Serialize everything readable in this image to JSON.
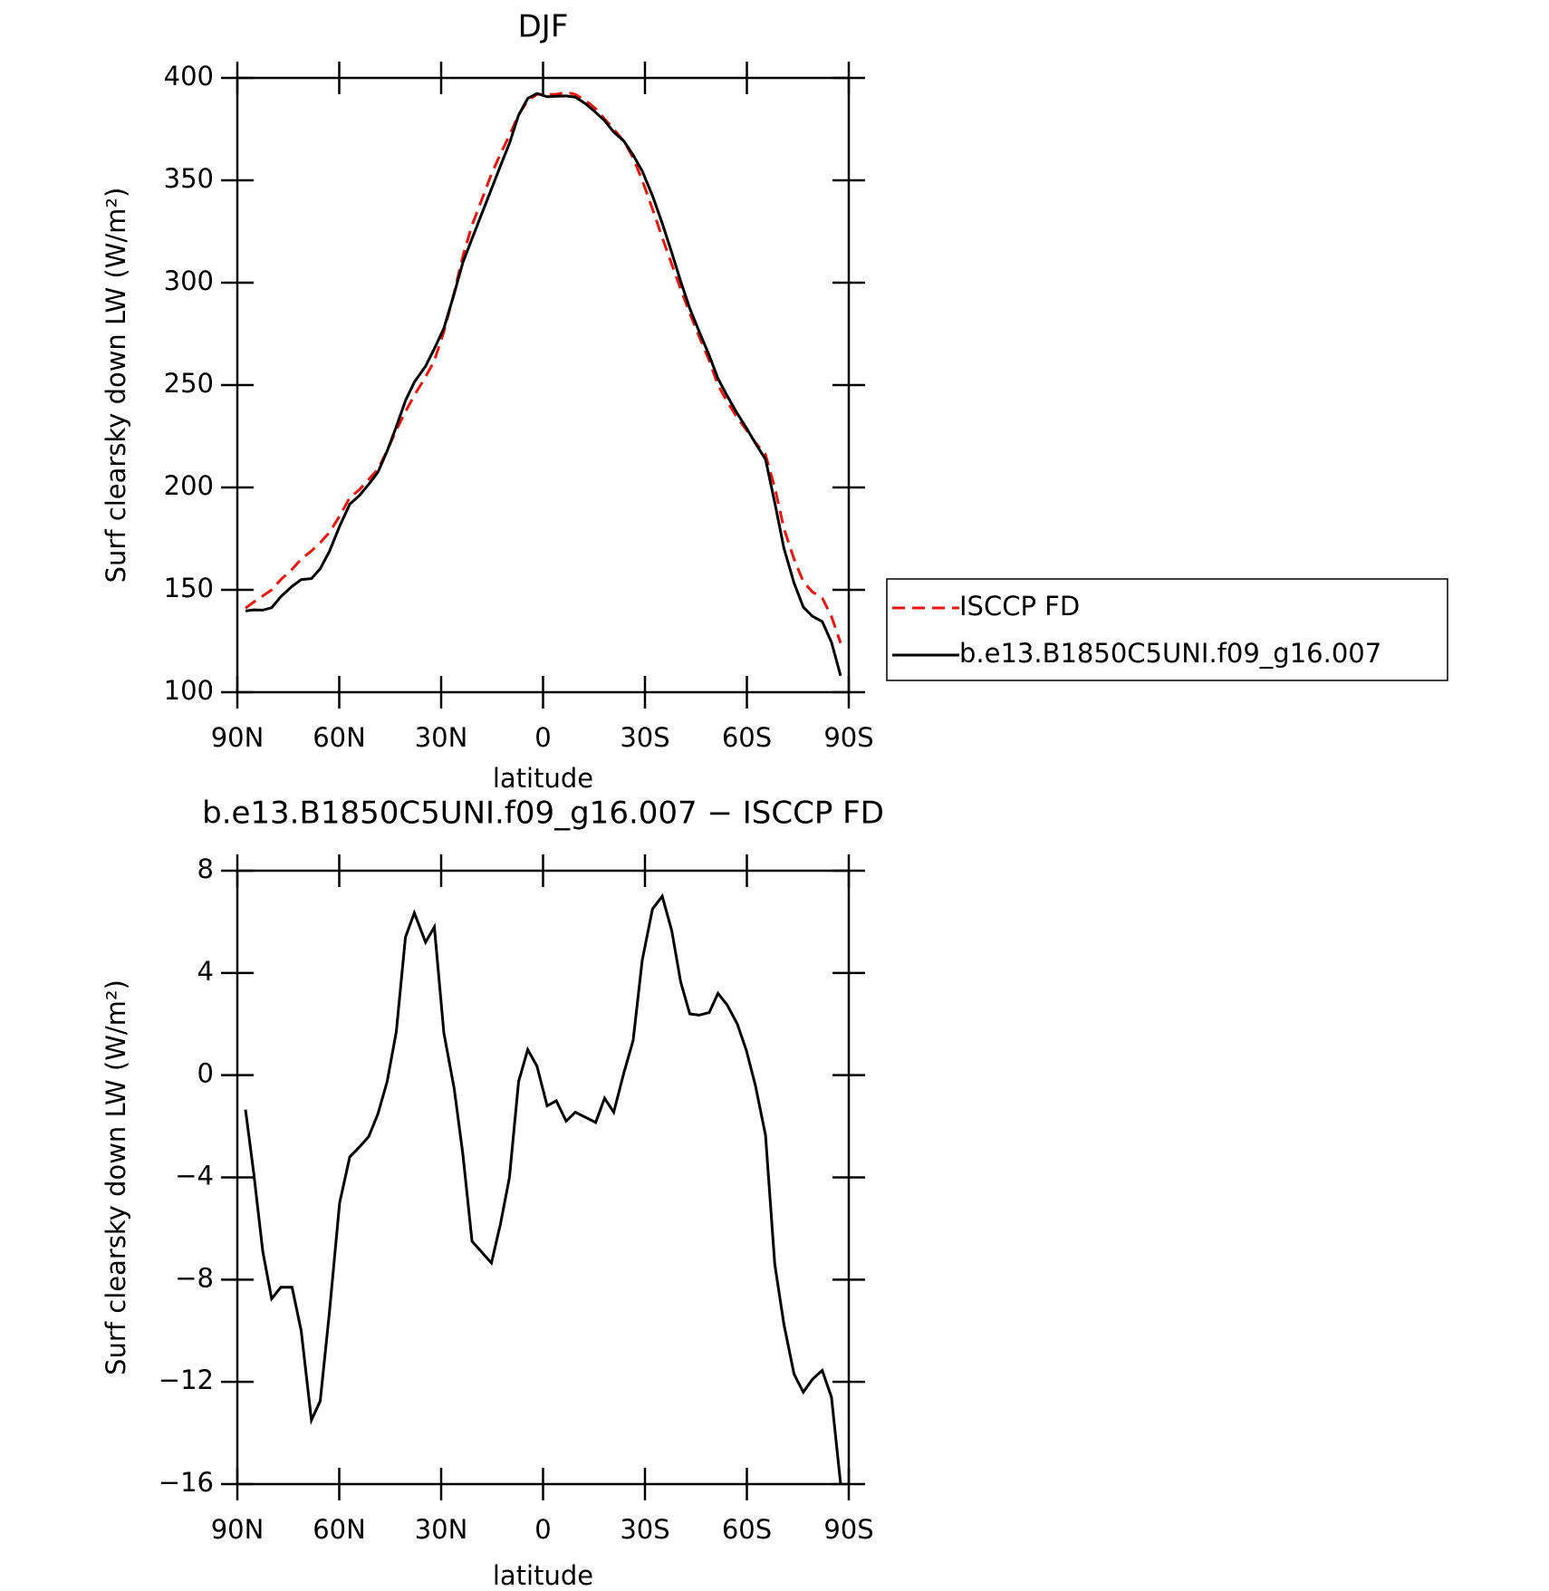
{
  "chart_data": [
    {
      "type": "line",
      "title": "DJF",
      "xlabel": "latitude",
      "ylabel": "Surf clearsky down LW (W/m²)",
      "x": [
        87.6,
        85.2,
        82.5,
        79.9,
        77.2,
        73.9,
        71.2,
        68.2,
        65.6,
        62.9,
        59.9,
        56.9,
        54.0,
        51.3,
        48.6,
        45.9,
        43.2,
        40.5,
        37.9,
        34.6,
        32.0,
        29.2,
        26.2,
        23.6,
        20.9,
        15.2,
        12.5,
        9.9,
        7.2,
        4.5,
        1.8,
        -1.2,
        -3.9,
        -6.8,
        -9.5,
        -12.5,
        -15.5,
        -18.1,
        -20.8,
        -23.8,
        -26.5,
        -29.2,
        -32.2,
        -35.1,
        -37.9,
        -40.5,
        -43.2,
        -45.9,
        -48.9,
        -51.5,
        -54.2,
        -57.2,
        -59.9,
        -62.5,
        -65.5,
        -68.2,
        -70.9,
        -73.9,
        -76.6,
        -79.3,
        -82.2,
        -84.9,
        -87.6
      ],
      "xlim": [
        90,
        -90
      ],
      "xticks": [
        {
          "value": 90,
          "label": "90N"
        },
        {
          "value": 60,
          "label": "60N"
        },
        {
          "value": 30,
          "label": "30N"
        },
        0,
        {
          "value": -30,
          "label": "30S"
        },
        {
          "value": -60,
          "label": "60S"
        },
        {
          "value": -90,
          "label": "90S"
        }
      ],
      "ylim": [
        100,
        400
      ],
      "yticks": [
        100,
        150,
        200,
        250,
        300,
        350,
        400
      ],
      "legend": "outside-right",
      "series": [
        {
          "name": "ISCCP FD",
          "color": "#e8160c",
          "linestyle": "dashed",
          "values": [
            141,
            144,
            147,
            150,
            155,
            160,
            165,
            169,
            173,
            178,
            186,
            195,
            199,
            204,
            209,
            218,
            228,
            237,
            245,
            254,
            262,
            276,
            295,
            313,
            328,
            353,
            363,
            372,
            382,
            389,
            392,
            392,
            392,
            393,
            392,
            389,
            385,
            380,
            375,
            369,
            361,
            350,
            336,
            322,
            309,
            297,
            285,
            274,
            262,
            250,
            242,
            234,
            228,
            222,
            216,
            200,
            180,
            165,
            154,
            149,
            146,
            137,
            124
          ]
        },
        {
          "name": "b.e13.B1850C5UNI.f09_g16.007",
          "color": "#000000",
          "linestyle": "solid",
          "values": [
            139.7,
            140.2,
            140.1,
            141.3,
            146.7,
            151.7,
            155,
            155.5,
            160.3,
            168.7,
            181,
            191.8,
            196.2,
            201.6,
            207.5,
            217.8,
            229.7,
            242.4,
            251.4,
            259.2,
            267.8,
            277.7,
            294.5,
            309.9,
            321.5,
            345.7,
            357.2,
            368,
            381.8,
            390,
            392.4,
            390.8,
            391,
            391.2,
            390.6,
            387.4,
            383.2,
            379.1,
            373.6,
            369.1,
            362.4,
            354.5,
            342.5,
            329,
            314.7,
            300.7,
            287.4,
            276.4,
            264.5,
            253.2,
            244.8,
            236,
            229,
            221.6,
            213.7,
            192.6,
            170.3,
            153.3,
            141.6,
            137.1,
            134.5,
            124.4,
            108
          ]
        }
      ]
    },
    {
      "type": "line",
      "title": "b.e13.B1850C5UNI.f09_g16.007 − ISCCP FD",
      "xlabel": "latitude",
      "ylabel": "Surf clearsky down LW (W/m²)",
      "x": [
        87.6,
        85.2,
        82.5,
        79.9,
        77.2,
        73.9,
        71.2,
        68.2,
        65.6,
        62.9,
        59.9,
        56.9,
        54.0,
        51.3,
        48.6,
        45.9,
        43.2,
        40.5,
        37.9,
        34.6,
        32.0,
        29.2,
        26.2,
        23.6,
        20.9,
        15.2,
        12.5,
        9.9,
        7.2,
        4.5,
        1.8,
        -1.2,
        -3.9,
        -6.8,
        -9.5,
        -12.5,
        -15.5,
        -18.1,
        -20.8,
        -23.8,
        -26.5,
        -29.2,
        -32.2,
        -35.1,
        -37.9,
        -40.5,
        -43.2,
        -45.9,
        -48.9,
        -51.5,
        -54.2,
        -57.2,
        -59.9,
        -62.5,
        -65.5,
        -68.2,
        -70.9,
        -73.9,
        -76.6,
        -79.3,
        -82.2,
        -84.9,
        -87.6
      ],
      "xlim": [
        90,
        -90
      ],
      "xticks": [
        {
          "value": 90,
          "label": "90N"
        },
        {
          "value": 60,
          "label": "60N"
        },
        {
          "value": 30,
          "label": "30N"
        },
        0,
        {
          "value": -30,
          "label": "30S"
        },
        {
          "value": -60,
          "label": "60S"
        },
        {
          "value": -90,
          "label": "90S"
        }
      ],
      "ylim": [
        -16,
        8
      ],
      "yticks": [
        {
          "value": -16,
          "label": "−16"
        },
        {
          "value": -12,
          "label": "−12"
        },
        {
          "value": -8,
          "label": "−8"
        },
        {
          "value": -4,
          "label": "−4"
        },
        0,
        4,
        8
      ],
      "series": [
        {
          "color": "#000000",
          "linestyle": "solid",
          "values": [
            -1.35,
            -3.8,
            -6.9,
            -8.75,
            -8.3,
            -8.3,
            -10,
            -13.5,
            -12.75,
            -9.3,
            -5,
            -3.2,
            -2.8,
            -2.4,
            -1.5,
            -0.25,
            1.7,
            5.4,
            6.35,
            5.2,
            5.8,
            1.65,
            -0.5,
            -3.1,
            -6.5,
            -7.35,
            -5.8,
            -4,
            -0.25,
            1,
            0.35,
            -1.2,
            -1,
            -1.8,
            -1.45,
            -1.65,
            -1.85,
            -0.9,
            -1.45,
            0.1,
            1.35,
            4.5,
            6.5,
            7,
            5.65,
            3.65,
            2.4,
            2.35,
            2.45,
            3.2,
            2.75,
            2,
            0.95,
            -0.4,
            -2.35,
            -7.4,
            -9.75,
            -11.7,
            -12.4,
            -11.9,
            -11.55,
            -12.6,
            -16
          ]
        }
      ]
    }
  ]
}
